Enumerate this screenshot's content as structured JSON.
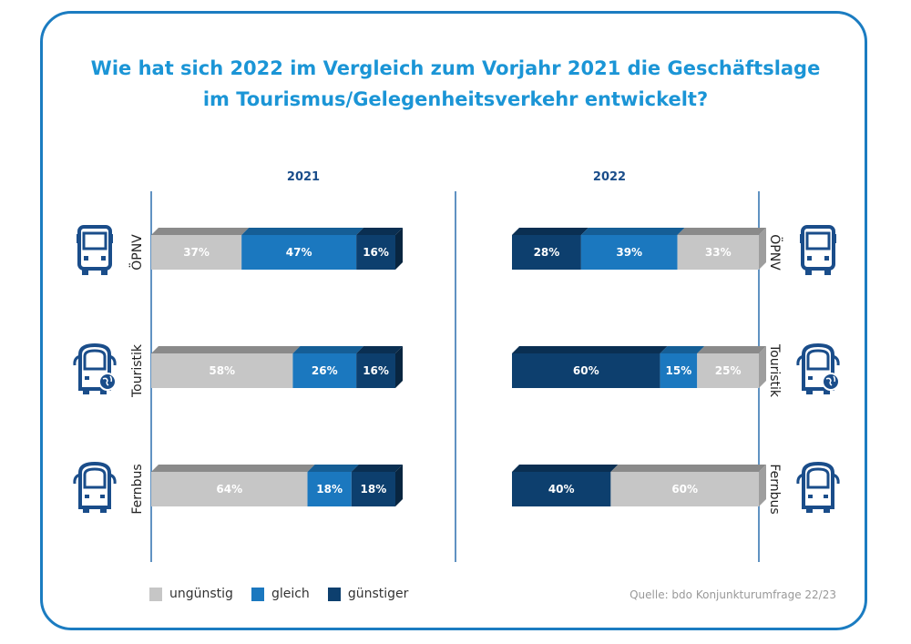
{
  "title_line1": "Wie hat sich 2022 im Vergleich zum Vorjahr 2021 die Geschäftslage",
  "title_line2": "im Tourismus/Gelegenheitsverkehr entwickelt?",
  "source": "Quelle: bdo Konjunkturumfrage 22/23",
  "colors": {
    "frame": "#1b7cc1",
    "title": "#1b95d6",
    "ungunstig": "#c6c6c6",
    "gleich": "#1b78bf",
    "gunstiger": "#0d3f6e",
    "icon": "#1a4d8a"
  },
  "chart_data": {
    "type": "bar",
    "orientation": "horizontal",
    "stacked": true,
    "unit": "%",
    "legend": [
      "ungünstig",
      "gleich",
      "günstiger"
    ],
    "categories": [
      "ÖPNV",
      "Touristik",
      "Fernbus"
    ],
    "panels": [
      {
        "year": "2021",
        "series": [
          {
            "name": "ungünstig",
            "values": [
              37,
              58,
              64
            ]
          },
          {
            "name": "gleich",
            "values": [
              47,
              26,
              18
            ]
          },
          {
            "name": "günstiger",
            "values": [
              16,
              16,
              18
            ]
          }
        ]
      },
      {
        "year": "2022",
        "series": [
          {
            "name": "günstiger",
            "values": [
              28,
              60,
              40
            ]
          },
          {
            "name": "gleich",
            "values": [
              39,
              15,
              0
            ]
          },
          {
            "name": "ungünstig",
            "values": [
              33,
              25,
              60
            ]
          }
        ]
      }
    ],
    "icons": [
      "city-bus-icon",
      "tour-bus-globe-icon",
      "coach-bus-icon"
    ]
  }
}
